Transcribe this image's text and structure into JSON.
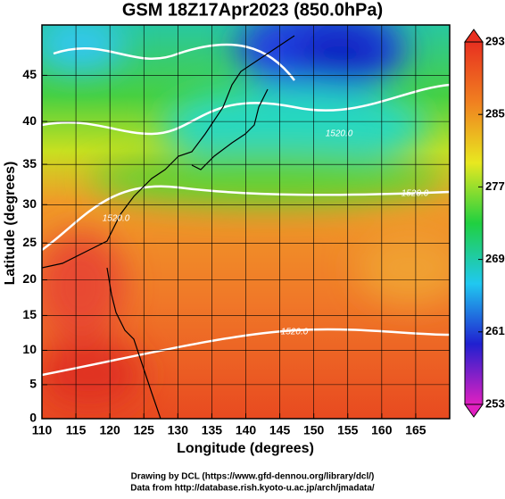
{
  "chart_data": {
    "type": "map",
    "title": "GSM 18Z17Apr2023 (850.0hPa)",
    "xlabel": "Longitude (degrees)",
    "ylabel": "Latitude  (degrees)",
    "projection": "mercator",
    "xlim": [
      110,
      170
    ],
    "ylim": [
      0,
      50
    ],
    "xticks": [
      110,
      115,
      120,
      125,
      130,
      135,
      140,
      145,
      150,
      155,
      160,
      165
    ],
    "yticks": [
      0,
      5,
      10,
      15,
      20,
      25,
      30,
      35,
      40,
      45
    ],
    "grid": true,
    "colorbar": {
      "lim": [
        253,
        293
      ],
      "ticks": [
        293,
        285,
        277,
        269,
        261,
        253
      ],
      "colors": [
        "#e020c0",
        "#2020d0",
        "#20c8f0",
        "#20d040",
        "#e8e820",
        "#f08020",
        "#e83020"
      ]
    },
    "contour_labels": [
      "1520.0",
      "1520.0",
      "1520.0",
      "1520.0"
    ],
    "footer": [
      "Drawing by DCL (https://www.gfd-dennou.org/library/dcl/)",
      "Data from http://database.rish.kyoto-u.ac.jp/arch/jmadata/"
    ]
  }
}
